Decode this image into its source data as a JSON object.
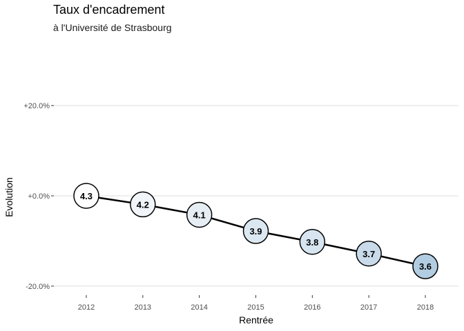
{
  "chart_data": {
    "type": "line",
    "title": "Taux d'encadrement",
    "subtitle": "à  l'Université de Strasbourg",
    "xlabel": "Rentrée",
    "ylabel": "Evolution",
    "x": [
      "2012",
      "2013",
      "2014",
      "2015",
      "2016",
      "2017",
      "2018"
    ],
    "y_evolution_pct": [
      0.0,
      -1.9,
      -4.2,
      -7.8,
      -10.2,
      -12.8,
      -15.6
    ],
    "point_labels": [
      "4.3",
      "4.2",
      "4.1",
      "3.9",
      "3.8",
      "3.7",
      "3.6"
    ],
    "point_fills": [
      "#ffffff",
      "#f1f4f8",
      "#e6edf3",
      "#dce8f1",
      "#d6e5f0",
      "#c9dbea",
      "#b2cde1"
    ],
    "y_ticks": [
      20,
      0,
      -20
    ],
    "y_tick_labels": [
      "+20.0%",
      "+0.0%",
      "-20.0%"
    ],
    "ylim": [
      -22,
      22
    ],
    "grid": "horizontal",
    "line_color": "#000000"
  }
}
